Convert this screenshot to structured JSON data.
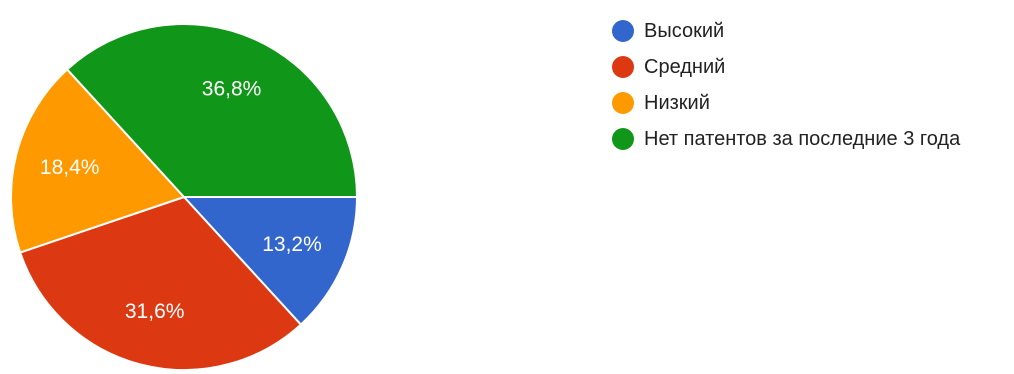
{
  "chart_data": {
    "type": "pie",
    "start_angle_deg": 90,
    "direction": "clockwise",
    "slices": [
      {
        "label": "Высокий",
        "value": 13.2,
        "display": "13,2%",
        "color": "#3366cc"
      },
      {
        "label": "Средний",
        "value": 31.6,
        "display": "31,6%",
        "color": "#dc3912"
      },
      {
        "label": "Низкий",
        "value": 18.4,
        "display": "18,4%",
        "color": "#ff9900"
      },
      {
        "label": "Нет патентов за последние 3 года",
        "value": 36.8,
        "display": "36,8%",
        "color": "#109618"
      }
    ],
    "legend_position": "right"
  }
}
